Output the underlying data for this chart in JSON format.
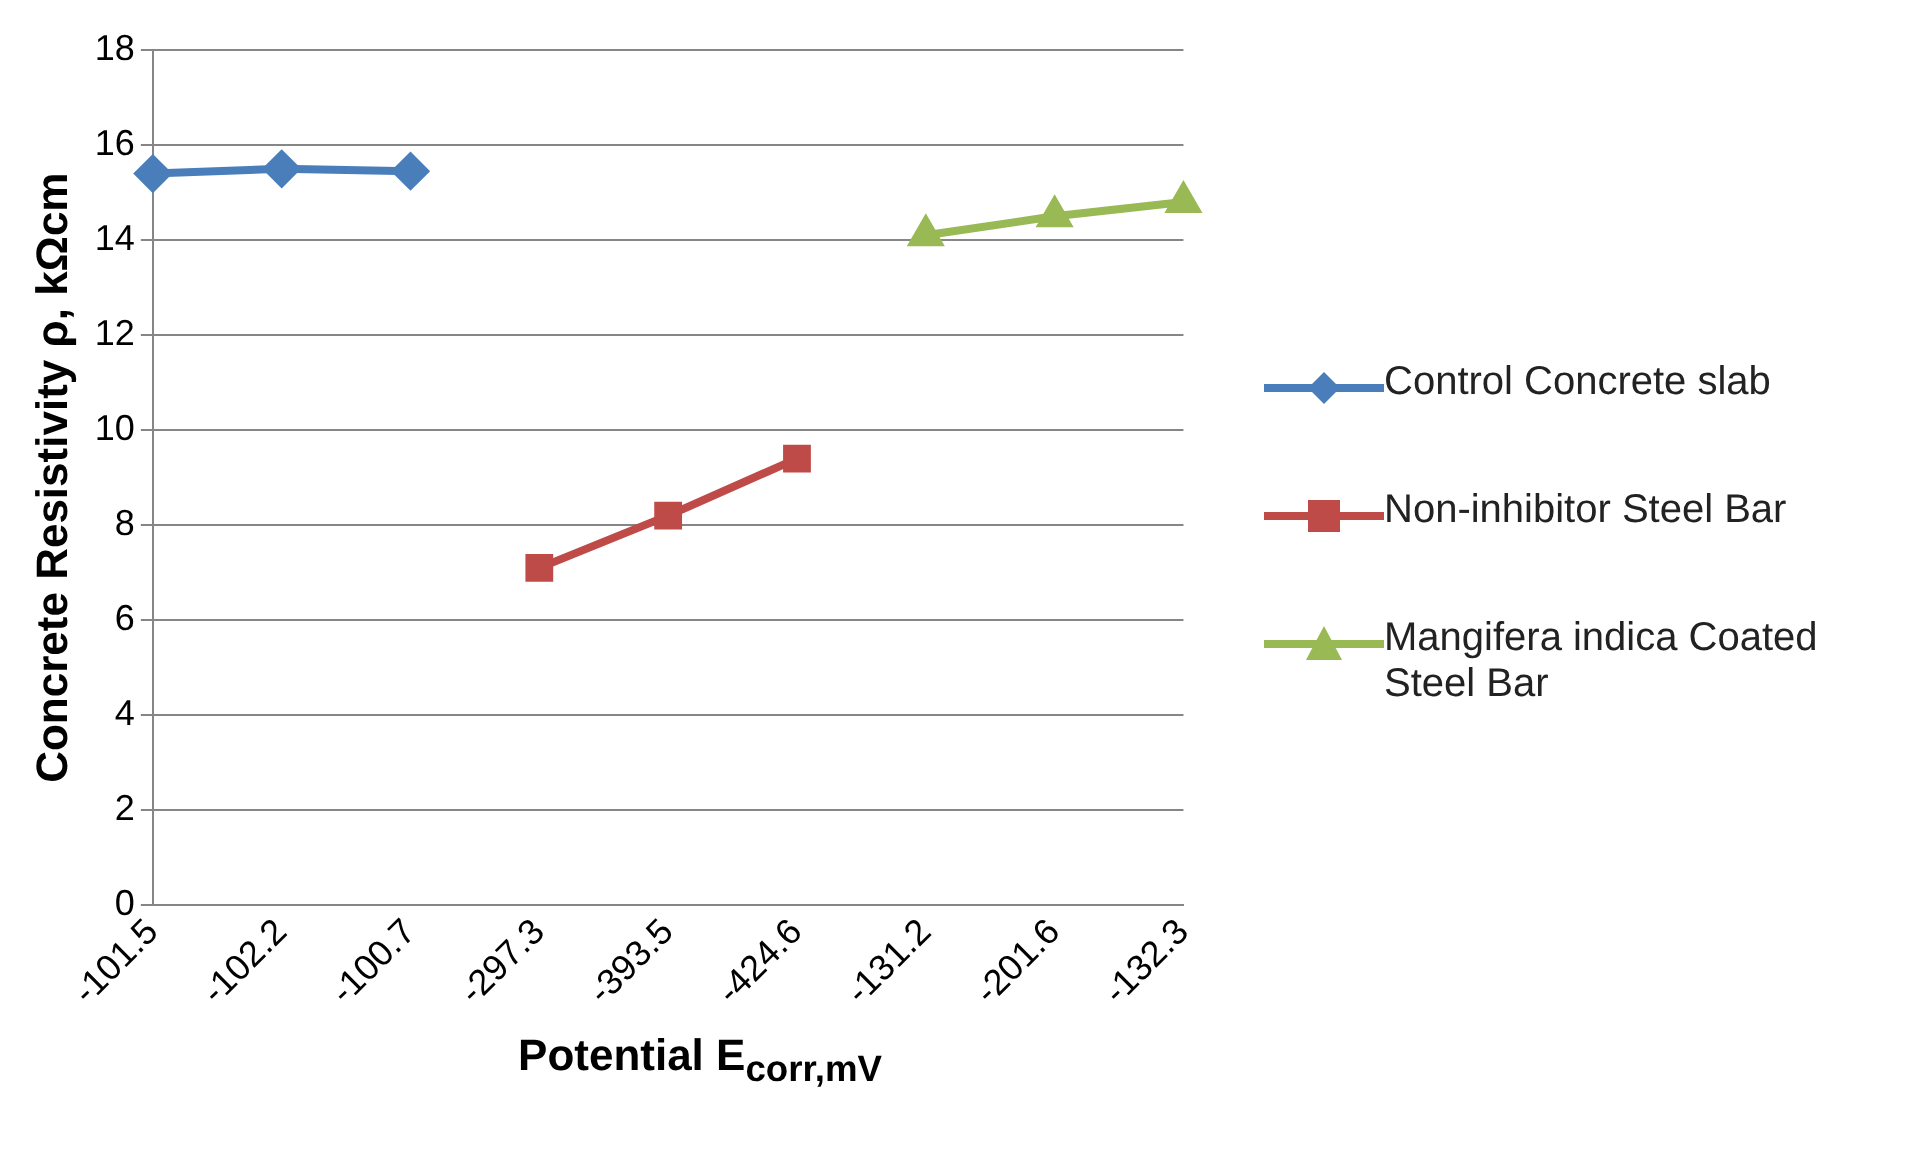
{
  "chart_data": {
    "type": "line",
    "xlabel": "Potential E$_{corr,mV}$",
    "ylabel": "Concrete Resistivity ρ, kΩcm",
    "categories": [
      "-101.5",
      "-102.2",
      "-100.7",
      "-297.3",
      "-393.5",
      "-424.6",
      "-131.2",
      "-201.6",
      "-132.3"
    ],
    "series": [
      {
        "name": "Control  Concrete slab",
        "color": "#4a7ebb",
        "marker": "diamond",
        "values": [
          15.4,
          15.5,
          15.45,
          null,
          null,
          null,
          null,
          null,
          null
        ]
      },
      {
        "name": "Non-inhibitor Steel Bar",
        "color": "#be4b48",
        "marker": "square",
        "values": [
          null,
          null,
          null,
          7.1,
          8.2,
          9.4,
          null,
          null,
          null
        ]
      },
      {
        "name": "Mangifera indica Coated Steel Bar",
        "color": "#98b954",
        "marker": "triangle",
        "values": [
          null,
          null,
          null,
          null,
          null,
          null,
          14.1,
          14.5,
          14.8
        ]
      }
    ],
    "ylim": [
      0,
      18
    ],
    "yticks": [
      0,
      2,
      4,
      6,
      8,
      10,
      12,
      14,
      16,
      18
    ],
    "grid": "y",
    "legend": "right",
    "line_style": "solid"
  }
}
